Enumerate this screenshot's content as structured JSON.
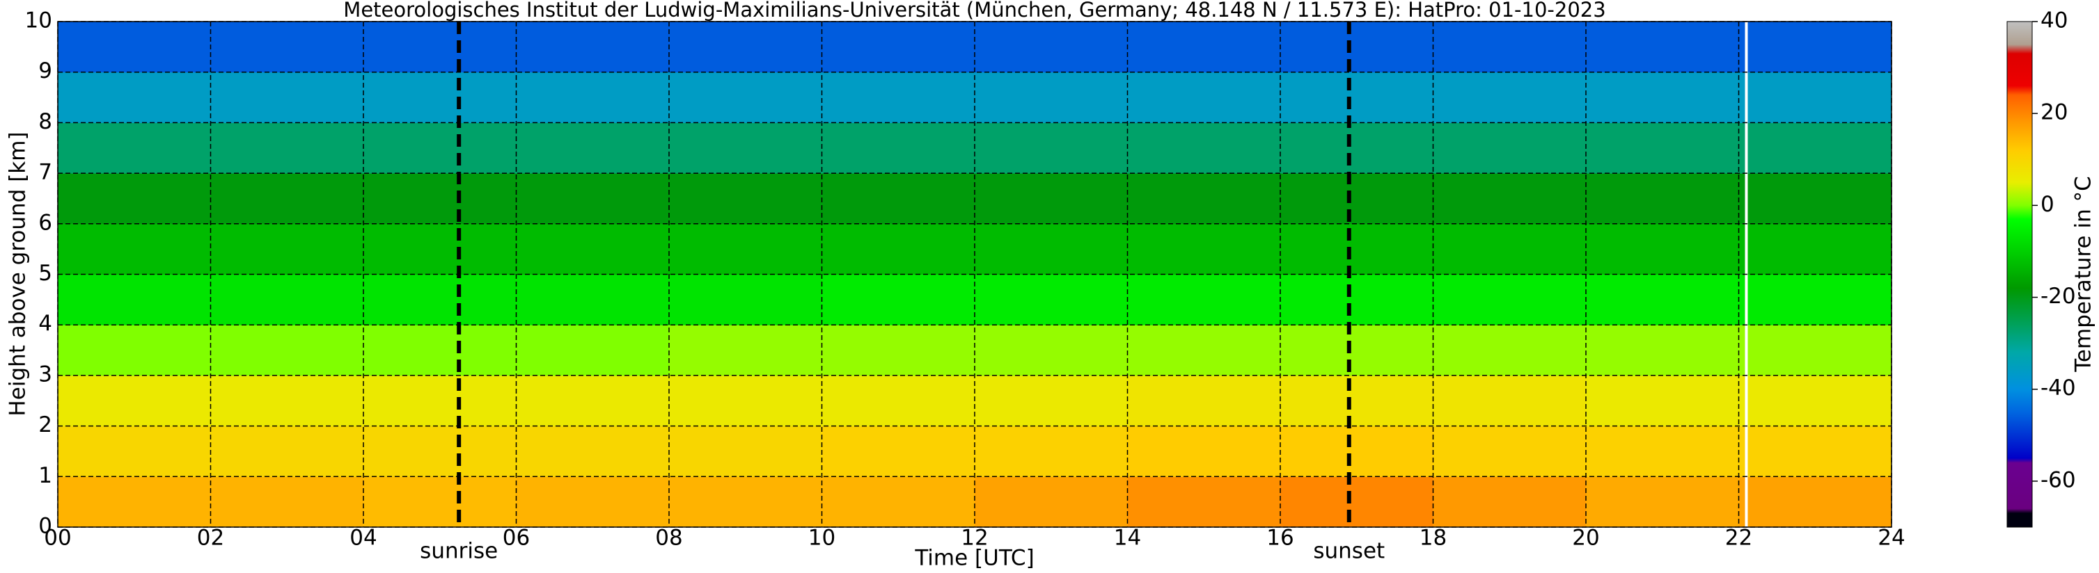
{
  "chart_data": {
    "type": "heatmap",
    "title": "Meteorologisches Institut der Ludwig-Maximilians-Universität (München, Germany; 48.148 N / 11.573 E):    HatPro: 01-10-2023",
    "xlabel": "Time [UTC]",
    "ylabel": "Height above ground [km]",
    "colorbar_label": "Temperature in °C",
    "x_edges": [
      0,
      2,
      4,
      6,
      8,
      10,
      12,
      14,
      16,
      18,
      20,
      22,
      24
    ],
    "y_edges": [
      0,
      1,
      2,
      3,
      4,
      5,
      6,
      7,
      8,
      9,
      10
    ],
    "values": [
      [
        15,
        15,
        14,
        15,
        15,
        15,
        17,
        19,
        20,
        18,
        16,
        17
      ],
      [
        10,
        10,
        10,
        10,
        10,
        11,
        11,
        12,
        12,
        11,
        11,
        11
      ],
      [
        6,
        6,
        6,
        6,
        6,
        6,
        6,
        7,
        7,
        7,
        6,
        6
      ],
      [
        0,
        0,
        0,
        0,
        1,
        1,
        1,
        1,
        1,
        1,
        1,
        1
      ],
      [
        -7,
        -7,
        -7,
        -7,
        -7,
        -6,
        -6,
        -6,
        -6,
        -6,
        -6,
        -6
      ],
      [
        -13,
        -13,
        -13,
        -13,
        -13,
        -13,
        -13,
        -13,
        -13,
        -13,
        -13,
        -13
      ],
      [
        -19,
        -19,
        -19,
        -19,
        -19,
        -19,
        -19,
        -19,
        -19,
        -19,
        -19,
        -19
      ],
      [
        -27,
        -27,
        -27,
        -27,
        -27,
        -27,
        -27,
        -27,
        -27,
        -27,
        -27,
        -27
      ],
      [
        -36,
        -36,
        -36,
        -36,
        -36,
        -36,
        -36,
        -36,
        -36,
        -36,
        -36,
        -36
      ],
      [
        -46,
        -46,
        -46,
        -46,
        -46,
        -46,
        -46,
        -46,
        -46,
        -46,
        -46,
        -46
      ]
    ],
    "xlim": [
      0,
      24
    ],
    "ylim": [
      0,
      10
    ],
    "xticks": [
      {
        "value": 0,
        "label": "00"
      },
      {
        "value": 2,
        "label": "02"
      },
      {
        "value": 4,
        "label": "04"
      },
      {
        "value": 6,
        "label": "06"
      },
      {
        "value": 8,
        "label": "08"
      },
      10,
      12,
      14,
      16,
      18,
      20,
      22,
      24
    ],
    "yticks": [
      0,
      1,
      2,
      3,
      4,
      5,
      6,
      7,
      8,
      9,
      10
    ],
    "grid": true,
    "annotations": [
      {
        "x": 5.25,
        "label": "sunrise"
      },
      {
        "x": 16.9,
        "label": "sunset"
      }
    ],
    "gaps": [
      22.1
    ],
    "clim": [
      -70,
      40
    ],
    "cticks": [
      40,
      20,
      0,
      -20,
      -40,
      -60
    ],
    "colorscale": [
      {
        "value": -70,
        "color": "#000010"
      },
      {
        "value": -67,
        "color": "#000010"
      },
      {
        "value": -66,
        "color": "#6a0080"
      },
      {
        "value": -56,
        "color": "#6a0090"
      },
      {
        "value": -55,
        "color": "#0000c8"
      },
      {
        "value": -45,
        "color": "#0066e0"
      },
      {
        "value": -40,
        "color": "#0090e0"
      },
      {
        "value": -32,
        "color": "#00a8a8"
      },
      {
        "value": -25,
        "color": "#00a050"
      },
      {
        "value": -18,
        "color": "#009900"
      },
      {
        "value": -10,
        "color": "#00d000"
      },
      {
        "value": -3,
        "color": "#00ff00"
      },
      {
        "value": 0,
        "color": "#80ff00"
      },
      {
        "value": 5,
        "color": "#e8ee00"
      },
      {
        "value": 12,
        "color": "#ffcc00"
      },
      {
        "value": 18,
        "color": "#ff9900"
      },
      {
        "value": 24,
        "color": "#ff6000"
      },
      {
        "value": 26,
        "color": "#ee0000"
      },
      {
        "value": 33,
        "color": "#dd0000"
      },
      {
        "value": 35,
        "color": "#b0a090"
      },
      {
        "value": 40,
        "color": "#c0c0c0"
      }
    ]
  }
}
